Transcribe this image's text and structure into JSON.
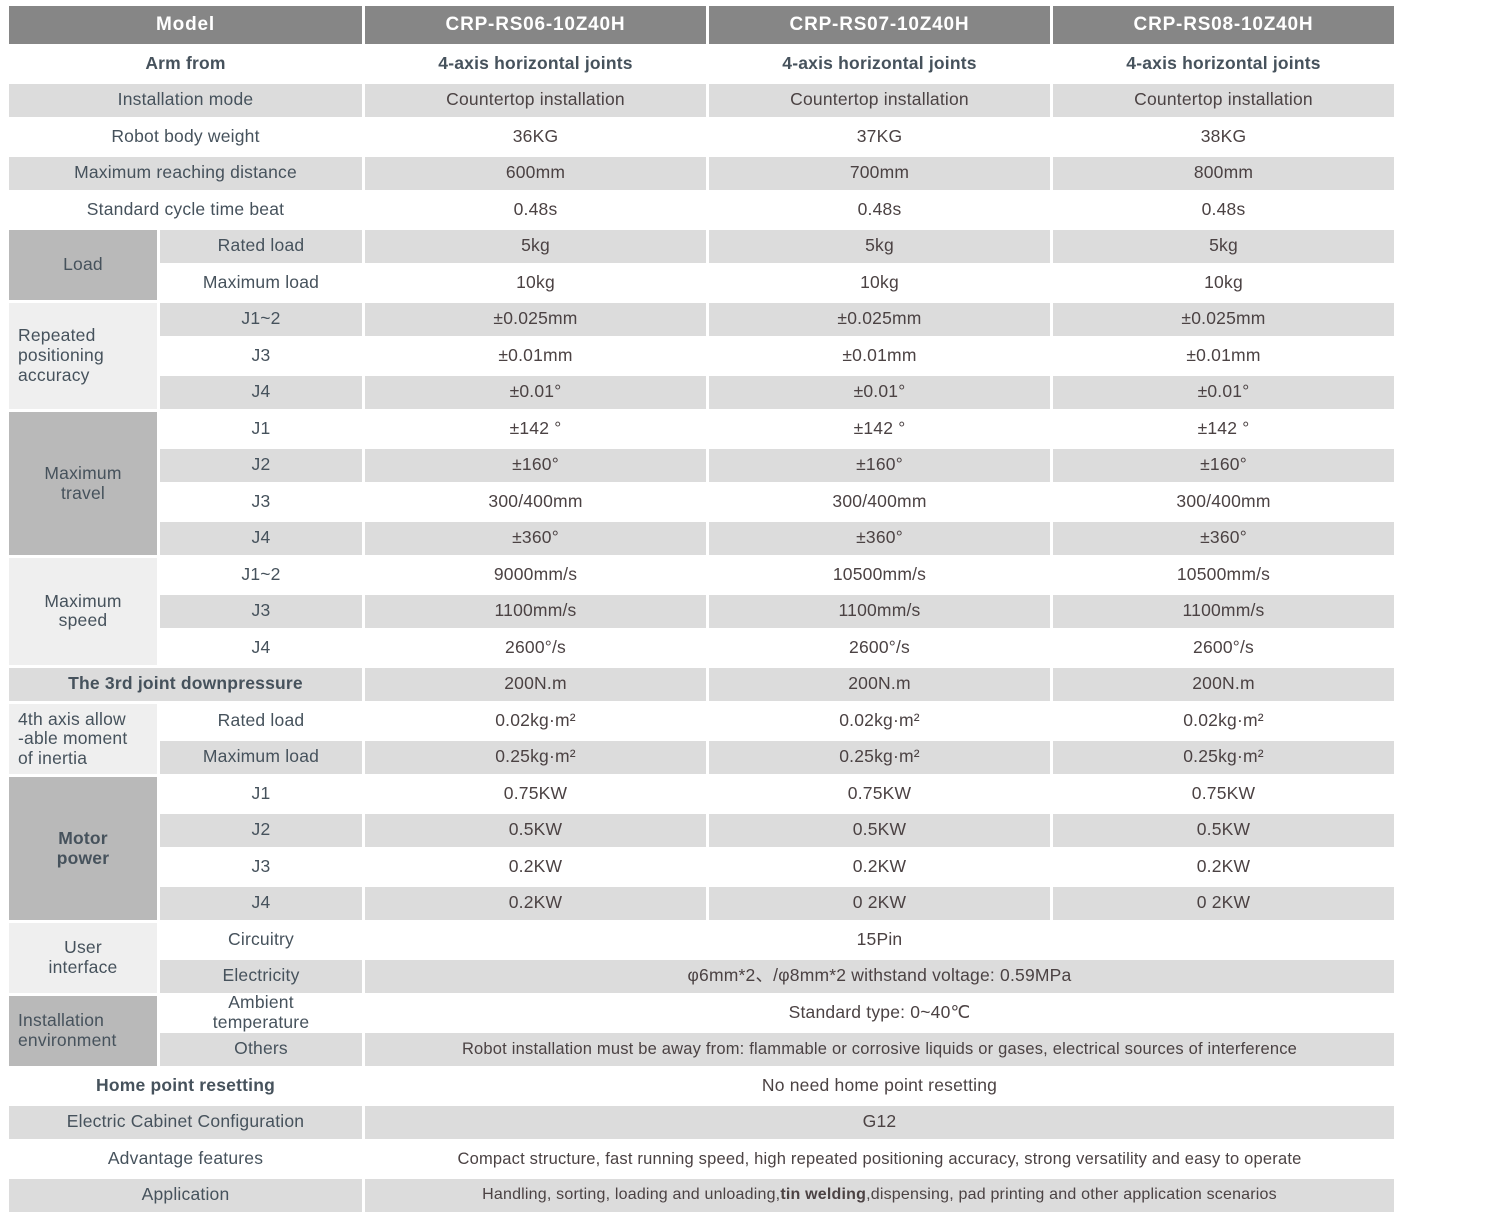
{
  "header": {
    "model_label": "Model",
    "models": [
      "CRP-RS06-10Z40H",
      "CRP-RS07-10Z40H",
      "CRP-RS08-10Z40H"
    ]
  },
  "simple_rows": [
    {
      "label": "Arm from",
      "values": [
        "4-axis horizontal joints",
        "4-axis horizontal joints",
        "4-axis horizontal joints"
      ]
    },
    {
      "label": "Installation mode",
      "values": [
        "Countertop installation",
        "Countertop installation",
        "Countertop installation"
      ]
    },
    {
      "label": "Robot body weight",
      "values": [
        "36KG",
        "37KG",
        "38KG"
      ]
    },
    {
      "label": "Maximum reaching distance",
      "values": [
        "600mm",
        "700mm",
        "800mm"
      ]
    },
    {
      "label": "Standard cycle time beat",
      "values": [
        "0.48s",
        "0.48s",
        "0.48s"
      ]
    }
  ],
  "groups": [
    {
      "label": "Load",
      "rows": [
        {
          "label": "Rated load",
          "values": [
            "5kg",
            "5kg",
            "5kg"
          ]
        },
        {
          "label": "Maximum load",
          "values": [
            "10kg",
            "10kg",
            "10kg"
          ]
        }
      ]
    },
    {
      "label": "Repeated\npositioning\naccuracy",
      "rows": [
        {
          "label": "J1~2",
          "values": [
            "±0.025mm",
            "±0.025mm",
            "±0.025mm"
          ]
        },
        {
          "label": "J3",
          "values": [
            "±0.01mm",
            "±0.01mm",
            "±0.01mm"
          ]
        },
        {
          "label": "J4",
          "values": [
            "±0.01°",
            "±0.01°",
            "±0.01°"
          ]
        }
      ]
    },
    {
      "label": "Maximum\ntravel",
      "rows": [
        {
          "label": "J1",
          "values": [
            "±142 °",
            "±142 °",
            "±142 °"
          ]
        },
        {
          "label": "J2",
          "values": [
            "±160°",
            "±160°",
            "±160°"
          ]
        },
        {
          "label": "J3",
          "values": [
            "300/400mm",
            "300/400mm",
            "300/400mm"
          ]
        },
        {
          "label": "J4",
          "values": [
            "±360°",
            "±360°",
            "±360°"
          ]
        }
      ]
    },
    {
      "label": "Maximum\nspeed",
      "rows": [
        {
          "label": "J1~2",
          "values": [
            "9000mm/s",
            "10500mm/s",
            "10500mm/s"
          ]
        },
        {
          "label": "J3",
          "values": [
            "1100mm/s",
            "1100mm/s",
            "1100mm/s"
          ]
        },
        {
          "label": "J4",
          "values": [
            "2600°/s",
            "2600°/s",
            "2600°/s"
          ]
        }
      ]
    },
    {
      "label": "4th axis allow\n-able moment\nof inertia",
      "rows": [
        {
          "label": "Rated load",
          "values": [
            "0.02kg·m²",
            "0.02kg·m²",
            "0.02kg·m²"
          ]
        },
        {
          "label": "Maximum load",
          "values": [
            "0.25kg·m²",
            "0.25kg·m²",
            "0.25kg·m²"
          ]
        }
      ]
    },
    {
      "label": "Motor\npower",
      "rows": [
        {
          "label": "J1",
          "values": [
            "0.75KW",
            "0.75KW",
            "0.75KW"
          ]
        },
        {
          "label": "J2",
          "values": [
            "0.5KW",
            "0.5KW",
            "0.5KW"
          ]
        },
        {
          "label": "J3",
          "values": [
            "0.2KW",
            "0.2KW",
            "0.2KW"
          ]
        },
        {
          "label": "J4",
          "values": [
            "0.2KW",
            "0 2KW",
            "0 2KW"
          ]
        }
      ]
    }
  ],
  "downpressure": {
    "label": "The 3rd joint downpressure",
    "values": [
      "200N.m",
      "200N.m",
      "200N.m"
    ]
  },
  "span_groups": [
    {
      "label": "User\ninterface",
      "rows": [
        {
          "label": "Circuitry",
          "value": "15Pin"
        },
        {
          "label": "Electricity",
          "value": "φ6mm*2、/φ8mm*2  withstand voltage: 0.59MPa"
        }
      ]
    },
    {
      "label": "Installation\nenvironment",
      "rows": [
        {
          "label": "Ambient\ntemperature",
          "value": "Standard type:  0~40℃"
        },
        {
          "label": "Others",
          "value": "Robot installation must be away from: flammable or corrosive liquids or gases, electrical sources of interference"
        }
      ]
    }
  ],
  "bottom_rows": [
    {
      "label": "Home point resetting",
      "value": "No need home point resetting"
    },
    {
      "label": "Electric Cabinet Configuration",
      "value": "G12"
    },
    {
      "label": "Advantage features",
      "value": "Compact structure, fast running speed, high repeated positioning accuracy, strong versatility and easy to operate"
    },
    {
      "label": "Application",
      "value_pre": "Handling, sorting, loading and unloading,",
      "value_bold": "tin welding",
      "value_post": ",dispensing, pad printing and other application scenarios"
    }
  ],
  "colors": {
    "header_bg": "#868686",
    "header_text": "#ffffff",
    "category_bg": "#b9b9b9",
    "category_light_bg": "#efefef",
    "row_alt_bg": "#dcdcdc",
    "label_text": "#46525c",
    "value_text": "#4b4243"
  }
}
